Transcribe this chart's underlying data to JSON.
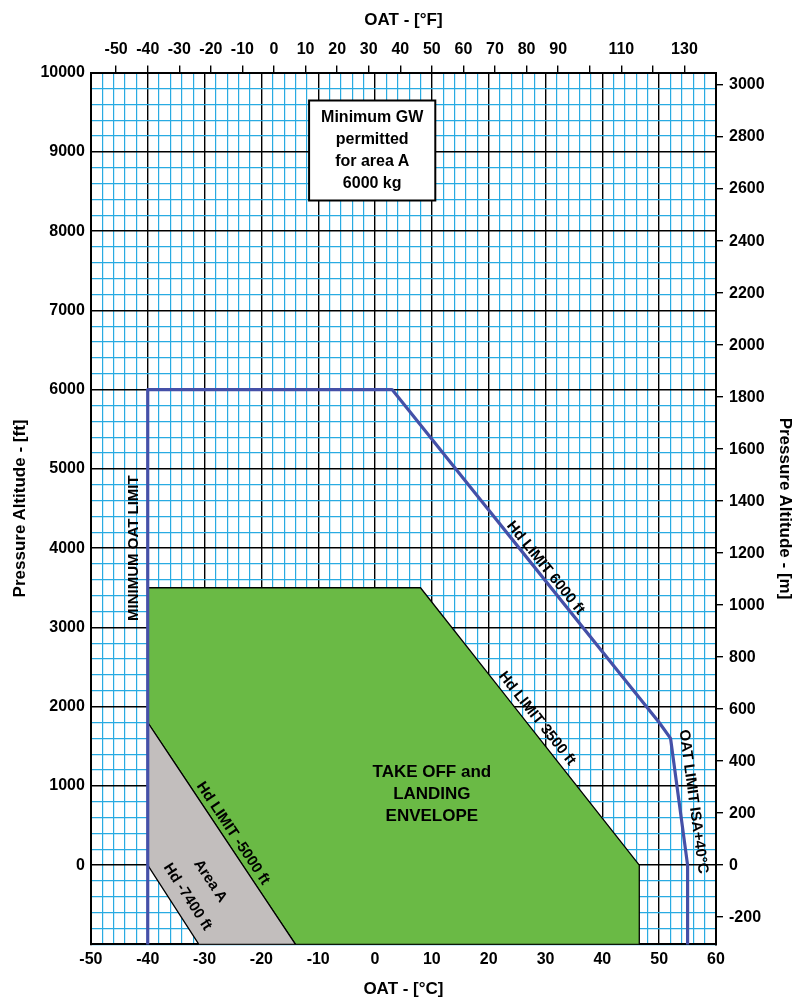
{
  "chart_data": {
    "type": "line",
    "xlabel": "OAT - [°C]",
    "x2label": "OAT - [°F]",
    "ylabel": "Pressure Altitude - [ft]",
    "y2label": "Pressure Altitude - [m]",
    "xlim": [
      -50,
      60
    ],
    "xticks": [
      -50,
      {
        "value": -48,
        "label": null
      },
      {
        "value": -46,
        "label": null
      },
      {
        "value": -44,
        "label": null
      },
      {
        "value": -42,
        "label": null
      },
      -40,
      {
        "value": -38,
        "label": null
      },
      {
        "value": -36,
        "label": null
      },
      {
        "value": -34,
        "label": null
      },
      {
        "value": -32,
        "label": null
      },
      -30,
      {
        "value": -28,
        "label": null
      },
      {
        "value": -26,
        "label": null
      },
      {
        "value": -24,
        "label": null
      },
      {
        "value": -22,
        "label": null
      },
      -20,
      {
        "value": -18,
        "label": null
      },
      {
        "value": -16,
        "label": null
      },
      {
        "value": -14,
        "label": null
      },
      {
        "value": -12,
        "label": null
      },
      -10,
      {
        "value": -8,
        "label": null
      },
      {
        "value": -6,
        "label": null
      },
      {
        "value": -4,
        "label": null
      },
      {
        "value": -2,
        "label": null
      },
      0,
      {
        "value": 2,
        "label": null
      },
      {
        "value": 4,
        "label": null
      },
      {
        "value": 6,
        "label": null
      },
      {
        "value": 8,
        "label": null
      },
      10,
      {
        "value": 12,
        "label": null
      },
      {
        "value": 14,
        "label": null
      },
      {
        "value": 16,
        "label": null
      },
      {
        "value": 18,
        "label": null
      },
      20,
      {
        "value": 22,
        "label": null
      },
      {
        "value": 24,
        "label": null
      },
      {
        "value": 26,
        "label": null
      },
      {
        "value": 28,
        "label": null
      },
      30,
      {
        "value": 32,
        "label": null
      },
      {
        "value": 34,
        "label": null
      },
      {
        "value": 36,
        "label": null
      },
      {
        "value": 38,
        "label": null
      },
      40,
      {
        "value": 42,
        "label": null
      },
      {
        "value": 44,
        "label": null
      },
      {
        "value": 46,
        "label": null
      },
      {
        "value": 48,
        "label": null
      },
      50,
      {
        "value": 52,
        "label": null
      },
      {
        "value": 54,
        "label": null
      },
      {
        "value": 56,
        "label": null
      },
      {
        "value": 58,
        "label": null
      },
      60
    ],
    "x2lim": [
      -58,
      140
    ],
    "x2ticks": [
      -50,
      -40,
      -30,
      -20,
      -10,
      0,
      10,
      20,
      30,
      40,
      50,
      60,
      70,
      80,
      90,
      {
        "value": 100,
        "label": null
      },
      110,
      {
        "value": 120,
        "label": null
      },
      130
    ],
    "ylim": [
      -1000,
      10000
    ],
    "yticks": [
      {
        "value": -1000,
        "label": null
      },
      {
        "value": -800,
        "label": null
      },
      {
        "value": -600,
        "label": null
      },
      {
        "value": -400,
        "label": null
      },
      {
        "value": -200,
        "label": null
      },
      0,
      {
        "value": 200,
        "label": null
      },
      {
        "value": 400,
        "label": null
      },
      {
        "value": 600,
        "label": null
      },
      {
        "value": 800,
        "label": null
      },
      1000,
      {
        "value": 1200,
        "label": null
      },
      {
        "value": 1400,
        "label": null
      },
      {
        "value": 1600,
        "label": null
      },
      {
        "value": 1800,
        "label": null
      },
      2000,
      {
        "value": 2200,
        "label": null
      },
      {
        "value": 2400,
        "label": null
      },
      {
        "value": 2600,
        "label": null
      },
      {
        "value": 2800,
        "label": null
      },
      3000,
      {
        "value": 3200,
        "label": null
      },
      {
        "value": 3400,
        "label": null
      },
      {
        "value": 3600,
        "label": null
      },
      {
        "value": 3800,
        "label": null
      },
      4000,
      {
        "value": 4200,
        "label": null
      },
      {
        "value": 4400,
        "label": null
      },
      {
        "value": 4600,
        "label": null
      },
      {
        "value": 4800,
        "label": null
      },
      5000,
      {
        "value": 5200,
        "label": null
      },
      {
        "value": 5400,
        "label": null
      },
      {
        "value": 5600,
        "label": null
      },
      {
        "value": 5800,
        "label": null
      },
      6000,
      {
        "value": 6200,
        "label": null
      },
      {
        "value": 6400,
        "label": null
      },
      {
        "value": 6600,
        "label": null
      },
      {
        "value": 6800,
        "label": null
      },
      7000,
      {
        "value": 7200,
        "label": null
      },
      {
        "value": 7400,
        "label": null
      },
      {
        "value": 7600,
        "label": null
      },
      {
        "value": 7800,
        "label": null
      },
      8000,
      {
        "value": 8200,
        "label": null
      },
      {
        "value": 8400,
        "label": null
      },
      {
        "value": 8600,
        "label": null
      },
      {
        "value": 8800,
        "label": null
      },
      9000,
      {
        "value": 9200,
        "label": null
      },
      {
        "value": 9400,
        "label": null
      },
      {
        "value": 9600,
        "label": null
      },
      {
        "value": 9800,
        "label": null
      },
      10000
    ],
    "y2lim": [
      -304.8,
      3048
    ],
    "y2ticks": [
      -200,
      0,
      200,
      400,
      600,
      800,
      1000,
      1200,
      1400,
      1600,
      1800,
      2000,
      2200,
      2400,
      2600,
      2800,
      3000
    ],
    "grid": true,
    "legend": false,
    "marker": "none",
    "series": [
      {
        "type": "line",
        "color": "#4550a8",
        "x": [
          -40,
          -40,
          3,
          50,
          52,
          55,
          55
        ],
        "values": [
          -1000,
          6000,
          6000,
          1800,
          1600,
          0,
          -1000
        ]
      },
      {
        "type": "area",
        "color": "#6aba45",
        "x": [
          -40,
          8,
          46.5,
          46.5,
          -14,
          -40
        ],
        "values": [
          3500,
          3500,
          0,
          -1000,
          -1000,
          1800
        ]
      },
      {
        "type": "area",
        "color": "#c2bebd",
        "x": [
          -40,
          -40,
          -31,
          -14
        ],
        "values": [
          1800,
          0,
          -1000,
          -1000
        ]
      }
    ],
    "annotations": [
      "Minimum GW\npermitted\nfor area A\n6000 kg",
      "MINIMUM OAT LIMIT",
      "Hd LIMIT 6000 ft",
      "Hd LIMIT 3500 ft",
      "OAT LIMIT ISA+40°C",
      "TAKE OFF and\nLANDING\nENVELOPE",
      "Hd LIMIT -5000 ft",
      "Area A",
      "Hd -7400 ft"
    ]
  }
}
